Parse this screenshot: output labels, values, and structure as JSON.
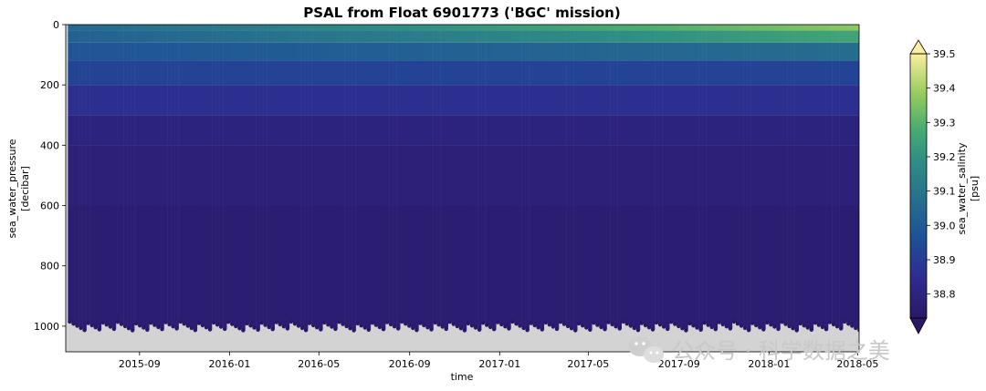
{
  "chart_data": {
    "type": "heatmap",
    "title": "PSAL from Float 6901773 ('BGC' mission)",
    "xlabel": "time",
    "ylabel": "sea_water_pressure",
    "ylabel_unit": "[decibar]",
    "x_ticks": [
      "2015-09",
      "2016-01",
      "2016-05",
      "2016-09",
      "2017-01",
      "2017-05",
      "2017-09",
      "2018-01",
      "2018-05"
    ],
    "x_range": [
      "2015-05-24",
      "2018-05-03"
    ],
    "y_ticks": [
      0,
      200,
      400,
      600,
      800,
      1000
    ],
    "y_range": [
      1085,
      0
    ],
    "y_inverted": true,
    "colorbar": {
      "label": "sea_water_salinity",
      "unit": "[psu]",
      "ticks": [
        38.8,
        38.9,
        39.0,
        39.1,
        39.2,
        39.3,
        39.4,
        39.5
      ],
      "range": [
        38.73,
        39.5
      ],
      "colormap": "haline",
      "extend": "both"
    },
    "background_color": "#d3d3d3"
  },
  "watermark": {
    "icon": "wechat-icon",
    "text": "公众号 · 科学数据之美"
  }
}
